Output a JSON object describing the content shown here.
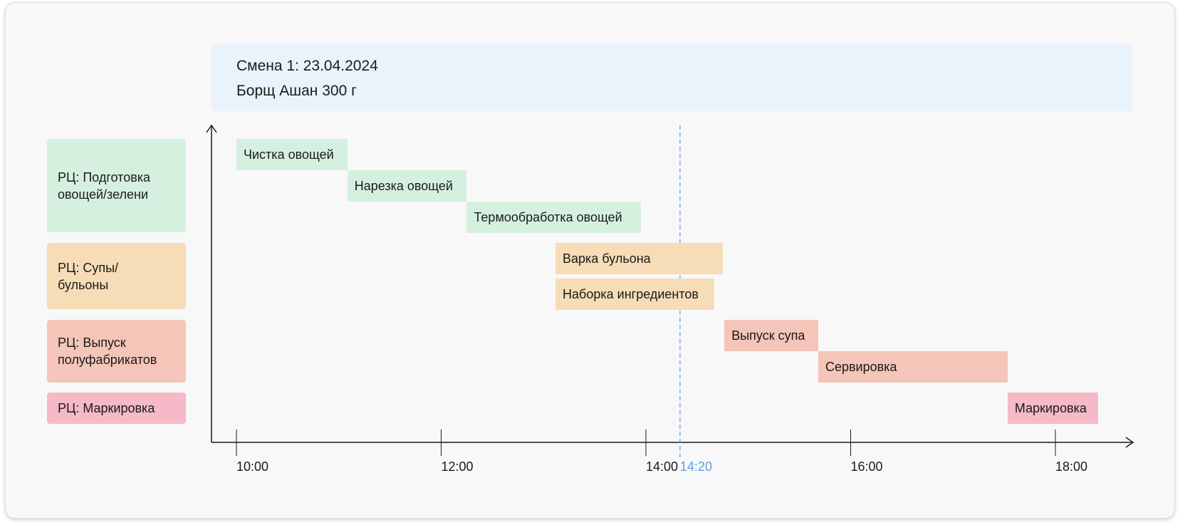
{
  "header": {
    "shift": "Смена 1: 23.04.2024",
    "product": "Борщ Ашан 300 г"
  },
  "colors": {
    "prep": "#d6f0e0",
    "soup": "#f6dcb7",
    "release": "#f4c5b8",
    "marking": "#f5b9c7",
    "now_line": "#5a9ee8",
    "axis": "#1a1a1a"
  },
  "chart_data": {
    "type": "gantt",
    "x_unit": "time",
    "x_ticks": [
      "10:00",
      "12:00",
      "14:00",
      "16:00",
      "18:00"
    ],
    "x_range": [
      "10:00",
      "19:00"
    ],
    "current_time": "14:20",
    "lanes": [
      {
        "id": "prep",
        "label": "РЦ: Подготовка\nовощей/зелени"
      },
      {
        "id": "soup",
        "label": "РЦ: Супы/\nбульоны"
      },
      {
        "id": "release",
        "label": "РЦ: Выпуск\nполуфабрикатов"
      },
      {
        "id": "marking",
        "label": "РЦ: Маркировка"
      }
    ],
    "tasks": [
      {
        "label": "Чистка овощей",
        "lane": "prep",
        "start": "10:00",
        "end": "11:05"
      },
      {
        "label": "Нарезка овощей",
        "lane": "prep",
        "start": "11:05",
        "end": "12:15"
      },
      {
        "label": "Термообработка овощей",
        "lane": "prep",
        "start": "12:15",
        "end": "13:57"
      },
      {
        "label": "Варка бульона",
        "lane": "soup",
        "start": "13:07",
        "end": "14:45"
      },
      {
        "label": "Наборка ингредиентов",
        "lane": "soup",
        "start": "13:07",
        "end": "14:40"
      },
      {
        "label": "Выпуск супа",
        "lane": "release",
        "start": "14:46",
        "end": "15:41"
      },
      {
        "label": "Сервировка",
        "lane": "release",
        "start": "15:41",
        "end": "17:32"
      },
      {
        "label": "Маркировка",
        "lane": "marking",
        "start": "17:32",
        "end": "18:25"
      }
    ]
  }
}
